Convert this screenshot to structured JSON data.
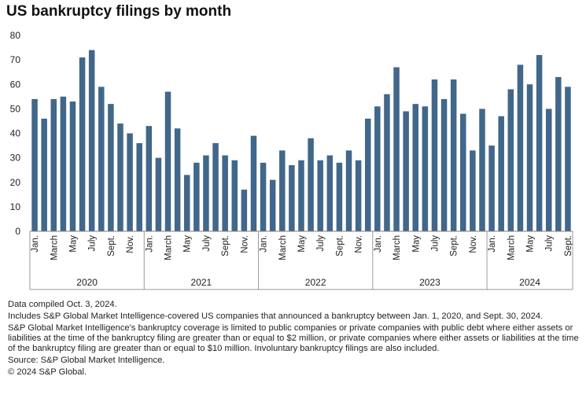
{
  "chart_data": {
    "type": "bar",
    "title": "US bankruptcy filings by month",
    "ylim": [
      0,
      80
    ],
    "yticks": [
      0,
      10,
      20,
      30,
      40,
      50,
      60,
      70,
      80
    ],
    "bar_color": "#41678a",
    "grid": false,
    "month_labels": [
      "Jan.",
      "",
      "March",
      "",
      "May",
      "",
      "July",
      "",
      "Sept.",
      "",
      "Nov.",
      ""
    ],
    "years": [
      {
        "label": "2020",
        "values": [
          54,
          46,
          54,
          55,
          53,
          71,
          74,
          59,
          52,
          44,
          40,
          36
        ]
      },
      {
        "label": "2021",
        "values": [
          43,
          30,
          57,
          42,
          23,
          28,
          31,
          36,
          31,
          29,
          17,
          39
        ]
      },
      {
        "label": "2022",
        "values": [
          28,
          21,
          33,
          27,
          29,
          38,
          29,
          31,
          28,
          33,
          29,
          46
        ]
      },
      {
        "label": "2023",
        "values": [
          51,
          56,
          67,
          49,
          52,
          51,
          62,
          54,
          62,
          48,
          33,
          50
        ]
      },
      {
        "label": "2024",
        "values": [
          35,
          47,
          58,
          68,
          60,
          72,
          50,
          63,
          59
        ]
      }
    ]
  },
  "notes": {
    "compiled": "Data compiled Oct. 3, 2024.",
    "includes": "Includes S&P Global Market Intelligence-covered US companies that announced a bankruptcy between Jan. 1, 2020, and Sept. 30, 2024.",
    "coverage": "S&P Global Market Intelligence's bankruptcy coverage is limited to public companies or private companies with public debt where either assets or liabilities at the time of the bankruptcy filing are greater than or equal to $2 million, or private companies where either assets or liabilities at the time of the bankruptcy filing are greater than or equal to $10 million. Involuntary bankruptcy filings are also included.",
    "source": "Source: S&P Global Market Intelligence.",
    "copyright": "© 2024 S&P Global."
  }
}
